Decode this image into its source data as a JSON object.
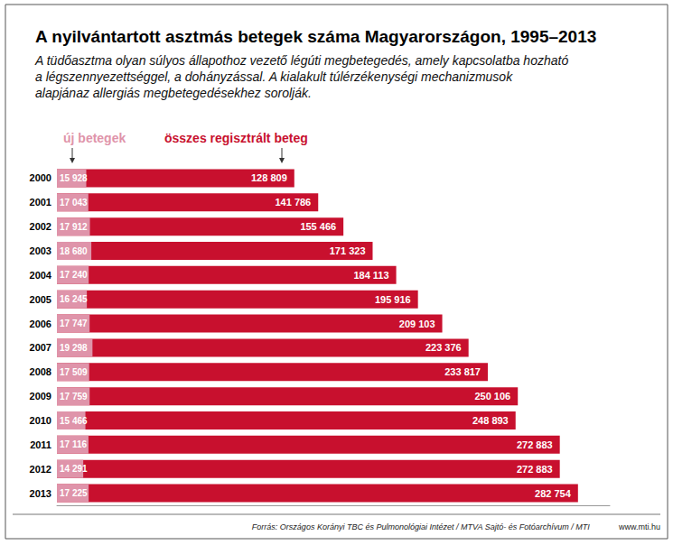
{
  "chart_data": {
    "type": "bar",
    "orientation": "horizontal",
    "title": "A nyilvántartott asztmás betegek száma Magyarországon, 1995–2013",
    "subtitle": "A tüdőasztma olyan súlyos állapothoz vezető légúti megbetegedés, amely kapcsolatba hozható\na légszennyezettséggel, a dohányzással. A kialakult túlérzékenységi mechanizmusok\nalapjánaz allergiás megbetegedésekhez sorolják.",
    "categories": [
      "2000",
      "2001",
      "2002",
      "2003",
      "2004",
      "2005",
      "2006",
      "2007",
      "2008",
      "2009",
      "2010",
      "2011",
      "2012",
      "2013"
    ],
    "series": [
      {
        "name": "összes regisztrált beteg",
        "color": "#c8102e",
        "values": [
          128809,
          141786,
          155466,
          171323,
          184113,
          195916,
          209103,
          223376,
          233817,
          250106,
          248893,
          272883,
          272883,
          282754
        ],
        "value_labels": [
          "128 809",
          "141 786",
          "155 466",
          "171 323",
          "184 113",
          "195 916",
          "209 103",
          "223 376",
          "233 817",
          "250 106",
          "248 893",
          "272 883",
          "272 883",
          "282 754"
        ]
      },
      {
        "name": "új betegek",
        "color": "#df94aa",
        "values": [
          15928,
          17043,
          17912,
          18680,
          17240,
          16245,
          17747,
          19298,
          17509,
          17759,
          15466,
          17116,
          14291,
          17225
        ],
        "value_labels": [
          "15 928",
          "17 043",
          "17 912",
          "18 680",
          "17 240",
          "16 245",
          "17 747",
          "19 298",
          "17 509",
          "17 759",
          "15 466",
          "17 116",
          "14 291",
          "17 225"
        ]
      }
    ],
    "xlim": [
      0,
      300000
    ],
    "data_labels": true,
    "tick_labels": "y",
    "grid": false,
    "legend": "top-left",
    "source": "Forrás: Országos Korányi TBC és Pulmonológiai Intézet / MTVA Sajtó- és Fotóarchívum / MTI",
    "annotations": [
      "www.mti.hu"
    ]
  }
}
